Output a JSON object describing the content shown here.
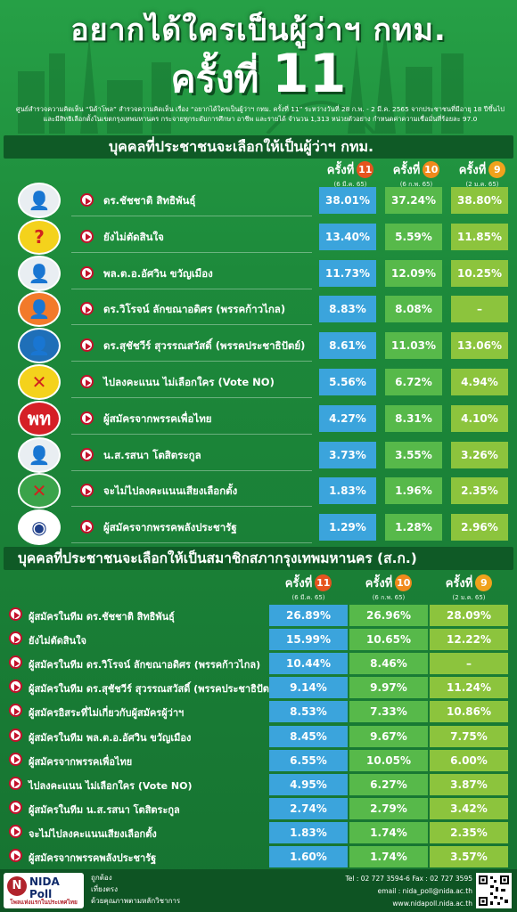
{
  "header": {
    "title_line1": "อยากได้ใครเป็นผู้ว่าฯ กทม.",
    "title_line2_text": "ครั้งที่",
    "title_line2_num": "11",
    "subtitle_line1": "ศูนย์สำรวจความคิดเห็น “นิด้าโพล” สำรวจความคิดเห็น เรื่อง “อยากได้ใครเป็นผู้ว่าฯ กทม. ครั้งที่ 11” ระหว่างวันที่ 28 ก.พ. - 2 มี.ค. 2565 จากประชาชนที่มีอายุ 18 ปีขึ้นไป",
    "subtitle_line2": "และมีสิทธิเลือกตั้งในเขตกรุงเทพมหานคร กระจายทุกระดับการศึกษา อาชีพ และรายได้ จำนวน 1,313 หน่วยตัวอย่าง กำหนดค่าความเชื่อมั่นที่ร้อยละ 97.0"
  },
  "columns": [
    {
      "label": "ครั้งที่",
      "num": "11",
      "date": "(6 มี.ค. 65)",
      "color": "#e6541f"
    },
    {
      "label": "ครั้งที่",
      "num": "10",
      "date": "(6 ก.พ. 65)",
      "color": "#f08a1c"
    },
    {
      "label": "ครั้งที่",
      "num": "9",
      "date": "(2 ม.ค. 65)",
      "color": "#f0a21c"
    }
  ],
  "chart_data": [
    {
      "type": "table",
      "title": "บุคคลที่ประชาชนจะเลือกให้เป็นผู้ว่าฯ กทม.",
      "series_names": [
        "ครั้งที่ 11",
        "ครั้งที่ 10",
        "ครั้งที่ 9"
      ],
      "rows": [
        {
          "name": "ดร.ชัชชาติ สิทธิพันธุ์",
          "icon": "person-chadchart-icon",
          "values": [
            "38.01%",
            "37.24%",
            "38.80%"
          ]
        },
        {
          "name": "ยังไม่ตัดสินใจ",
          "icon": "question-mark-icon",
          "values": [
            "13.40%",
            "5.59%",
            "11.85%"
          ]
        },
        {
          "name": "พล.ต.อ.อัศวิน ขวัญเมือง",
          "icon": "person-aswin-icon",
          "values": [
            "11.73%",
            "12.09%",
            "10.25%"
          ]
        },
        {
          "name": "ดร.วิโรจน์ ลักขณาอดิศร (พรรคก้าวไกล)",
          "icon": "person-wiroj-icon",
          "values": [
            "8.83%",
            "8.08%",
            "–"
          ]
        },
        {
          "name": "ดร.สุชัชวีร์ สุวรรณสวัสดิ์ (พรรคประชาธิปัตย์)",
          "icon": "person-suchatvee-icon",
          "values": [
            "8.61%",
            "11.03%",
            "13.06%"
          ]
        },
        {
          "name": "ไปลงคะแนน ไม่เลือกใคร (Vote NO)",
          "icon": "vote-no-icon",
          "values": [
            "5.56%",
            "6.72%",
            "4.94%"
          ]
        },
        {
          "name": "ผู้สมัครจากพรรคเพื่อไทย",
          "icon": "pheu-thai-logo-icon",
          "values": [
            "4.27%",
            "8.31%",
            "4.10%"
          ]
        },
        {
          "name": "น.ส.รสนา โตสิตระกูล",
          "icon": "person-rosana-icon",
          "values": [
            "3.73%",
            "3.55%",
            "3.26%"
          ]
        },
        {
          "name": "จะไม่ไปลงคะแนนเสียงเลือกตั้ง",
          "icon": "ballot-cross-icon",
          "values": [
            "1.83%",
            "1.96%",
            "2.35%"
          ]
        },
        {
          "name": "ผู้สมัครจากพรรคพลังประชารัฐ",
          "icon": "palang-pracharat-logo-icon",
          "values": [
            "1.29%",
            "1.28%",
            "2.96%"
          ]
        }
      ]
    },
    {
      "type": "table",
      "title": "บุคคลที่ประชาชนจะเลือกให้เป็นสมาชิกสภากรุงเทพมหานคร (ส.ก.)",
      "series_names": [
        "ครั้งที่ 11",
        "ครั้งที่ 10",
        "ครั้งที่ 9"
      ],
      "rows": [
        {
          "name": "ผู้สมัครในทีม ดร.ชัชชาติ สิทธิพันธุ์",
          "values": [
            "26.89%",
            "26.96%",
            "28.09%"
          ]
        },
        {
          "name": "ยังไม่ตัดสินใจ",
          "values": [
            "15.99%",
            "10.65%",
            "12.22%"
          ]
        },
        {
          "name": "ผู้สมัครในทีม ดร.วิโรจน์ ลักขณาอดิศร (พรรคก้าวไกล)",
          "values": [
            "10.44%",
            "8.46%",
            "–"
          ]
        },
        {
          "name": "ผู้สมัครในทีม ดร.สุชัชวีร์ สุวรรณสวัสดิ์ (พรรคประชาธิปัตย์)",
          "values": [
            "9.14%",
            "9.97%",
            "11.24%"
          ]
        },
        {
          "name": "ผู้สมัครอิสระที่ไม่เกี่ยวกับผู้สมัครผู้ว่าฯ",
          "values": [
            "8.53%",
            "7.33%",
            "10.86%"
          ]
        },
        {
          "name": "ผู้สมัครในทีม พล.ต.อ.อัศวิน ขวัญเมือง",
          "values": [
            "8.45%",
            "9.67%",
            "7.75%"
          ]
        },
        {
          "name": "ผู้สมัครจากพรรคเพื่อไทย",
          "values": [
            "6.55%",
            "10.05%",
            "6.00%"
          ]
        },
        {
          "name": "ไปลงคะแนน ไม่เลือกใคร (Vote NO)",
          "values": [
            "4.95%",
            "6.27%",
            "3.87%"
          ]
        },
        {
          "name": "ผู้สมัครในทีม น.ส.รสนา โตสิตระกูล",
          "values": [
            "2.74%",
            "2.79%",
            "3.42%"
          ]
        },
        {
          "name": "จะไม่ไปลงคะแนนเสียงเลือกตั้ง",
          "values": [
            "1.83%",
            "1.74%",
            "2.35%"
          ]
        },
        {
          "name": "ผู้สมัครจากพรรคพลังประชารัฐ",
          "values": [
            "1.60%",
            "1.74%",
            "3.57%"
          ]
        }
      ]
    }
  ],
  "footer": {
    "logo_text": "NIDA Poll",
    "logo_sub": "โพลแห่งแรกในประเทศไทย",
    "tagline": [
      "ถูกต้อง",
      "เที่ยงตรง",
      "ด้วยคุณภาพตามหลักวิชาการ"
    ],
    "tel": "Tel : 02 727 3594-6 Fax : 02 727 3595",
    "email": "email : nida_poll@nida.ac.th",
    "web": "www.nidapoll.nida.ac.th"
  }
}
